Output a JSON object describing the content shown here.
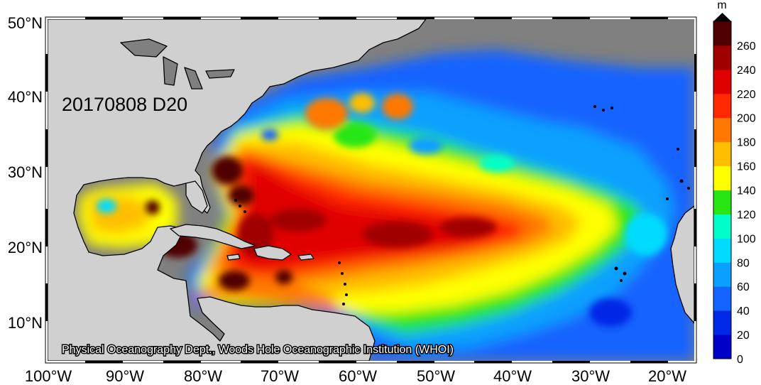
{
  "map": {
    "date_label": "20170808 D20",
    "credit": "Physical Oceanography Dept., Woods Hole Oceanographic Institution (WHOI)",
    "lon_labels": [
      "100°W",
      "90°W",
      "80°W",
      "70°W",
      "60°W",
      "50°W",
      "40°W",
      "30°W",
      "20°W"
    ],
    "lat_labels": [
      "50°N",
      "40°N",
      "30°N",
      "20°N",
      "10°N"
    ],
    "colors": {
      "land": "#d0d0d0",
      "no_data": "#808080",
      "coast": "#000000"
    }
  },
  "colorbar": {
    "unit": "m",
    "ticks": [
      "0",
      "20",
      "40",
      "60",
      "80",
      "100",
      "120",
      "140",
      "160",
      "180",
      "200",
      "220",
      "240",
      "260"
    ],
    "colors": [
      "#0000c8",
      "#0028e6",
      "#1464ff",
      "#0aa0ff",
      "#00dcff",
      "#00ffc8",
      "#28e614",
      "#ffff00",
      "#ffbe00",
      "#ff7800",
      "#ff2800",
      "#e10000",
      "#a00000",
      "#500000"
    ]
  }
}
